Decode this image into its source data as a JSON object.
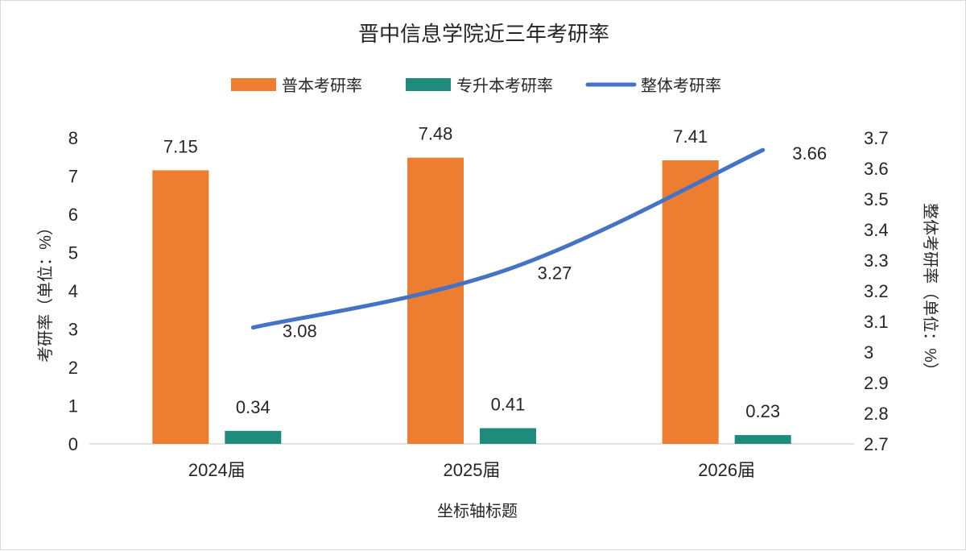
{
  "chart_data": {
    "type": "bar",
    "title": "晋中信息学院近三年考研率",
    "xlabel": "坐标轴标题",
    "ylabel": "考研率（单位：%）",
    "y2label": "整体考研率（单位：%）",
    "categories": [
      "2024届",
      "2025届",
      "2026届"
    ],
    "ylim": [
      0,
      8
    ],
    "yticks": [
      "0",
      "1",
      "2",
      "3",
      "4",
      "5",
      "6",
      "7",
      "8"
    ],
    "y2lim": [
      2.7,
      3.7
    ],
    "y2ticks": [
      "2.7",
      "2.8",
      "2.9",
      "3",
      "3.1",
      "3.2",
      "3.3",
      "3.4",
      "3.5",
      "3.6",
      "3.7"
    ],
    "legend_position": "top",
    "series": [
      {
        "name": "普本考研率",
        "type": "bar",
        "axis": "left",
        "color": "#ED7D31",
        "values": [
          7.15,
          7.48,
          7.41
        ],
        "labels": [
          "7.15",
          "7.48",
          "7.41"
        ]
      },
      {
        "name": "专升本考研率",
        "type": "bar",
        "axis": "left",
        "color": "#1F8B7D",
        "values": [
          0.34,
          0.41,
          0.23
        ],
        "labels": [
          "0.34",
          "0.41",
          "0.23"
        ]
      },
      {
        "name": "整体考研率",
        "type": "line",
        "axis": "right",
        "color": "#4472C4",
        "values": [
          3.08,
          3.27,
          3.66
        ],
        "labels": [
          "3.08",
          "3.27",
          "3.66"
        ]
      }
    ]
  }
}
